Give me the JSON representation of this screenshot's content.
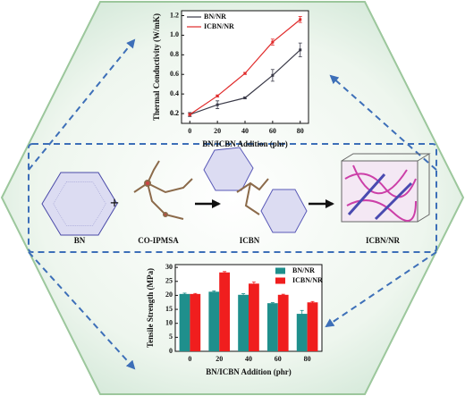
{
  "chart_data": [
    {
      "type": "line",
      "x": [
        0,
        20,
        40,
        60,
        80
      ],
      "xlabel": "BN/ICBN Addition (phr)",
      "ylabel": "Thermal Conductivity (W/mK)",
      "series": [
        {
          "name": "BN/NR",
          "color": "#3a3a48",
          "values": [
            0.19,
            0.29,
            0.36,
            0.59,
            0.85
          ],
          "errors": [
            0.02,
            0.04,
            0.01,
            0.06,
            0.07
          ]
        },
        {
          "name": "ICBN/NR",
          "color": "#e02a2a",
          "values": [
            0.19,
            0.38,
            0.61,
            0.93,
            1.16
          ],
          "errors": [
            0.01,
            0.01,
            0.01,
            0.03,
            0.03
          ]
        }
      ],
      "xlim": [
        -6,
        86
      ],
      "xticks": [
        0,
        20,
        40,
        60,
        80
      ],
      "ylim": [
        0.1,
        1.25
      ],
      "yticks": [
        0.2,
        0.4,
        0.6,
        0.8,
        {
          "value": 1.0,
          "label": "1.0"
        },
        0.2,
        1.2
      ],
      "legend": "upper left"
    },
    {
      "type": "bar",
      "categories": [
        "0",
        "20",
        "40",
        "60",
        "80"
      ],
      "xlabel": "BN/ICBN Addition (phr)",
      "ylabel": "Tensile Strength (MPa)",
      "series": [
        {
          "name": "BN/NR",
          "color": "#1f8f8c",
          "values": [
            20.5,
            21.3,
            20.2,
            17.2,
            13.4
          ],
          "errors": [
            0.3,
            0.3,
            0.4,
            0.2,
            1.2
          ]
        },
        {
          "name": "ICBN/NR",
          "color": "#f01e1e",
          "values": [
            20.5,
            28.2,
            24.2,
            20.2,
            17.5
          ],
          "errors": [
            0.2,
            0.3,
            0.6,
            0.2,
            0.3
          ]
        }
      ],
      "ylim": [
        0,
        31
      ],
      "yticks": [
        0,
        5,
        10,
        15,
        20,
        25,
        30
      ],
      "legend": "upper right"
    }
  ],
  "diagram": {
    "labels": [
      "BN",
      "+",
      "CO-IPMSA",
      "ICBN",
      "ICBN/NR"
    ]
  }
}
